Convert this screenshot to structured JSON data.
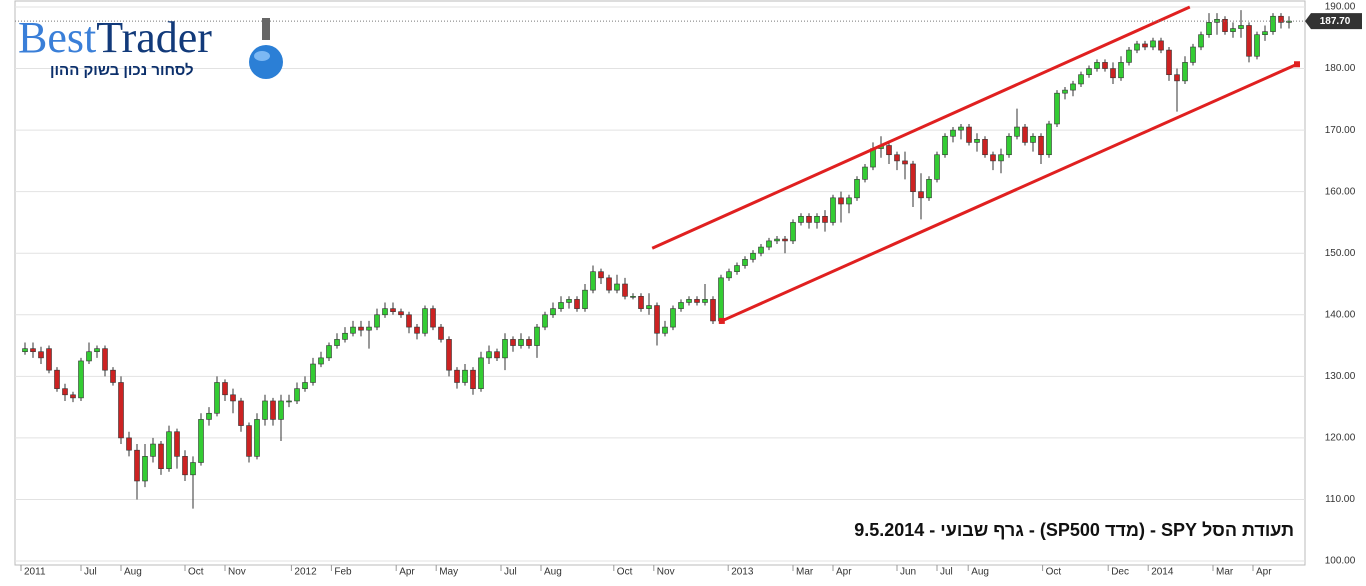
{
  "logo": {
    "first": "Best",
    "second": "Trader",
    "tagline": "לסחור נכון בשוק ההון"
  },
  "chart_data": {
    "type": "candlestick",
    "caption": "תעודת הסל SPY - (מדד SP500) - גרף שבועי - 9.5.2014",
    "up_color": "#33cc33",
    "down_color": "#cc2222",
    "trend_color": "#e02020",
    "grid": true,
    "ylim": [
      100,
      190
    ],
    "yticks": [
      {
        "value": 100,
        "label": "100.00"
      },
      {
        "value": 110,
        "label": "110.00"
      },
      {
        "value": 120,
        "label": "120.00"
      },
      {
        "value": 130,
        "label": "130.00"
      },
      {
        "value": 140,
        "label": "140.00"
      },
      {
        "value": 150,
        "label": "150.00"
      },
      {
        "value": 160,
        "label": "160.00"
      },
      {
        "value": 170,
        "label": "170.00"
      },
      {
        "value": 180,
        "label": "180.00"
      },
      {
        "value": 190,
        "label": "190.00"
      }
    ],
    "xlim": [
      -1.25,
      160
    ],
    "xticks": [
      {
        "value": -0.5,
        "label": "2011"
      },
      {
        "value": 7,
        "label": "Jul"
      },
      {
        "value": 12,
        "label": "Aug"
      },
      {
        "value": 20,
        "label": "Oct"
      },
      {
        "value": 25,
        "label": "Nov"
      },
      {
        "value": 33.3,
        "label": "2012"
      },
      {
        "value": 38.3,
        "label": "Feb"
      },
      {
        "value": 46.4,
        "label": "Apr"
      },
      {
        "value": 51.4,
        "label": "May"
      },
      {
        "value": 59.5,
        "label": "Jul"
      },
      {
        "value": 64.5,
        "label": "Aug"
      },
      {
        "value": 73.6,
        "label": "Oct"
      },
      {
        "value": 78.6,
        "label": "Nov"
      },
      {
        "value": 87.9,
        "label": "2013"
      },
      {
        "value": 96,
        "label": "Mar"
      },
      {
        "value": 101,
        "label": "Apr"
      },
      {
        "value": 109,
        "label": "Jun"
      },
      {
        "value": 114,
        "label": "Jul"
      },
      {
        "value": 117.9,
        "label": "Aug"
      },
      {
        "value": 127.2,
        "label": "Oct"
      },
      {
        "value": 135.4,
        "label": "Dec"
      },
      {
        "value": 140.4,
        "label": "2014"
      },
      {
        "value": 148.5,
        "label": "Mar"
      },
      {
        "value": 153.5,
        "label": "Apr"
      }
    ],
    "last_price": {
      "value": 187.7,
      "label": "187.70"
    },
    "trend_lines": [
      {
        "x": [
          78.4,
          145.6
        ],
        "y": [
          150.8,
          190
        ]
      },
      {
        "x": [
          87.1,
          159
        ],
        "y": [
          139,
          180.7
        ]
      }
    ],
    "ohlc": [
      [
        134,
        135.5,
        133.5,
        134.5
      ],
      [
        134.5,
        135.5,
        133,
        134
      ],
      [
        134,
        134.8,
        132,
        133
      ],
      [
        134.5,
        135,
        130.5,
        131
      ],
      [
        131,
        131.5,
        127.5,
        128
      ],
      [
        128,
        128.8,
        126,
        127
      ],
      [
        127,
        127.5,
        125.8,
        126.5
      ],
      [
        126.5,
        133,
        126,
        132.5
      ],
      [
        132.5,
        135.5,
        132,
        134
      ],
      [
        134,
        135,
        133,
        134.5
      ],
      [
        134.5,
        135,
        130,
        131
      ],
      [
        131,
        131.5,
        128.5,
        129
      ],
      [
        129,
        130,
        119,
        120
      ],
      [
        120,
        121,
        117,
        118
      ],
      [
        118,
        119,
        110,
        113
      ],
      [
        113,
        119,
        112,
        117
      ],
      [
        117,
        120,
        116,
        119
      ],
      [
        119,
        119.5,
        114,
        115
      ],
      [
        115,
        122,
        114.5,
        121
      ],
      [
        121,
        121.5,
        115,
        117
      ],
      [
        117,
        118,
        113,
        114
      ],
      [
        114,
        117,
        108.5,
        116
      ],
      [
        116,
        124,
        115.5,
        123
      ],
      [
        123,
        125,
        122,
        124
      ],
      [
        124,
        130,
        123.5,
        129
      ],
      [
        129,
        129.5,
        126,
        127
      ],
      [
        127,
        128,
        124,
        126
      ],
      [
        126,
        126.5,
        121,
        122
      ],
      [
        122,
        122.5,
        116,
        117
      ],
      [
        117,
        124,
        116.5,
        123
      ],
      [
        123,
        127,
        122,
        126
      ],
      [
        126,
        126.5,
        122,
        123
      ],
      [
        123,
        127,
        119.5,
        126
      ],
      [
        126,
        127,
        125,
        126
      ],
      [
        126,
        129,
        125.5,
        128
      ],
      [
        128,
        130,
        127.5,
        129
      ],
      [
        129,
        133,
        128.5,
        132
      ],
      [
        132,
        134,
        131.5,
        133
      ],
      [
        133,
        135.5,
        132.5,
        135
      ],
      [
        135,
        137,
        134.5,
        136
      ],
      [
        136,
        138,
        135.5,
        137
      ],
      [
        137,
        139,
        136.5,
        138
      ],
      [
        138,
        139,
        136.5,
        137.5
      ],
      [
        137.5,
        139,
        134.5,
        138
      ],
      [
        138,
        141,
        137.5,
        140
      ],
      [
        140,
        142,
        139.5,
        141
      ],
      [
        141,
        142,
        140,
        140.5
      ],
      [
        140.5,
        141,
        139.5,
        140
      ],
      [
        140,
        140.5,
        137,
        138
      ],
      [
        138,
        138.5,
        136,
        137
      ],
      [
        137,
        141.5,
        136.5,
        141
      ],
      [
        141,
        141.5,
        137.5,
        138
      ],
      [
        138,
        138.5,
        135.5,
        136
      ],
      [
        136,
        136.5,
        130,
        131
      ],
      [
        131,
        131.5,
        128,
        129
      ],
      [
        129,
        132,
        128.5,
        131
      ],
      [
        131,
        131.5,
        127,
        128
      ],
      [
        128,
        134,
        127.5,
        133
      ],
      [
        133,
        135,
        132,
        134
      ],
      [
        134,
        134.5,
        132.5,
        133
      ],
      [
        133,
        137,
        131,
        136
      ],
      [
        136,
        136.5,
        134,
        135
      ],
      [
        135,
        137,
        134.5,
        136
      ],
      [
        136,
        136.5,
        134.5,
        135
      ],
      [
        135,
        138.5,
        133,
        138
      ],
      [
        138,
        140.5,
        137.5,
        140
      ],
      [
        140,
        142,
        139.5,
        141
      ],
      [
        141,
        143,
        140.5,
        142
      ],
      [
        142,
        143,
        141,
        142.5
      ],
      [
        142.5,
        143,
        140.5,
        141
      ],
      [
        141,
        145,
        140.5,
        144
      ],
      [
        144,
        148,
        143.5,
        147
      ],
      [
        147,
        147.5,
        145,
        146
      ],
      [
        146,
        146.5,
        143.5,
        144
      ],
      [
        144,
        146.5,
        143.5,
        145
      ],
      [
        145,
        146,
        142.5,
        143
      ],
      [
        143,
        143.5,
        142.5,
        143
      ],
      [
        143,
        143.5,
        140.5,
        141
      ],
      [
        141,
        143.5,
        140,
        141.5
      ],
      [
        141.5,
        142,
        135,
        137
      ],
      [
        137,
        139,
        136.5,
        138
      ],
      [
        138,
        141.5,
        137.5,
        141
      ],
      [
        141,
        142.5,
        140.5,
        142
      ],
      [
        142,
        143,
        141.5,
        142.5
      ],
      [
        142.5,
        143,
        141.5,
        142
      ],
      [
        142,
        145,
        141.5,
        142.5
      ],
      [
        142.5,
        143,
        138.5,
        139
      ],
      [
        139,
        146.5,
        138.5,
        146
      ],
      [
        146,
        147.5,
        145.5,
        147
      ],
      [
        147,
        148.5,
        146.5,
        148
      ],
      [
        148,
        149.5,
        147.5,
        149
      ],
      [
        149,
        150.5,
        148.5,
        150
      ],
      [
        150,
        151.5,
        149.5,
        151
      ],
      [
        151,
        152.5,
        150.5,
        152
      ],
      [
        152,
        152.8,
        151.5,
        152.3
      ],
      [
        152.3,
        152.8,
        150,
        152
      ],
      [
        152,
        155.5,
        151.5,
        155
      ],
      [
        155,
        156.5,
        154.5,
        156
      ],
      [
        156,
        156.5,
        154,
        155
      ],
      [
        155,
        156.5,
        154,
        156
      ],
      [
        156,
        157,
        153.5,
        155
      ],
      [
        155,
        159.5,
        154.5,
        159
      ],
      [
        159,
        160,
        155,
        158
      ],
      [
        158,
        159.5,
        156.5,
        159
      ],
      [
        159,
        162.5,
        158.5,
        162
      ],
      [
        162,
        164.5,
        161.5,
        164
      ],
      [
        164,
        168,
        163.5,
        167
      ],
      [
        167,
        169,
        165.5,
        167.5
      ],
      [
        167.5,
        168,
        164.5,
        166
      ],
      [
        166,
        166.5,
        163.5,
        165
      ],
      [
        165,
        166.5,
        162,
        164.5
      ],
      [
        164.5,
        165,
        157.5,
        160
      ],
      [
        160,
        163,
        155.5,
        159
      ],
      [
        159,
        162.5,
        158.5,
        162
      ],
      [
        162,
        166.5,
        161.5,
        166
      ],
      [
        166,
        169.5,
        165.5,
        169
      ],
      [
        169,
        170.5,
        168,
        170
      ],
      [
        170,
        171,
        168.5,
        170.5
      ],
      [
        170.5,
        171,
        167.5,
        168
      ],
      [
        168,
        169.5,
        166.5,
        168.5
      ],
      [
        168.5,
        169,
        165.5,
        166
      ],
      [
        166,
        166.5,
        163.5,
        165
      ],
      [
        165,
        167,
        163,
        166
      ],
      [
        166,
        169.5,
        165.5,
        169
      ],
      [
        169,
        173.5,
        168.5,
        170.5
      ],
      [
        170.5,
        171,
        167.5,
        168
      ],
      [
        168,
        169.5,
        166.5,
        169
      ],
      [
        169,
        169.5,
        164.5,
        166
      ],
      [
        166,
        171.5,
        165.5,
        171
      ],
      [
        171,
        176.5,
        170.5,
        176
      ],
      [
        176,
        177,
        175,
        176.5
      ],
      [
        176.5,
        178,
        175.5,
        177.5
      ],
      [
        177.5,
        179.5,
        177,
        179
      ],
      [
        179,
        180.5,
        178.5,
        180
      ],
      [
        180,
        181.5,
        179.5,
        181
      ],
      [
        181,
        181.5,
        179.5,
        180
      ],
      [
        180,
        181,
        177.5,
        178.5
      ],
      [
        178.5,
        182,
        178,
        181
      ],
      [
        181,
        183.5,
        180.5,
        183
      ],
      [
        183,
        184.5,
        182.5,
        184
      ],
      [
        184,
        184.5,
        183,
        183.5
      ],
      [
        183.5,
        185,
        183,
        184.5
      ],
      [
        184.5,
        185,
        182.5,
        183
      ],
      [
        183,
        183.5,
        178,
        179
      ],
      [
        179,
        180,
        173,
        178
      ],
      [
        178,
        182,
        177.5,
        181
      ],
      [
        181,
        184,
        180.5,
        183.5
      ],
      [
        183.5,
        186,
        183,
        185.5
      ],
      [
        185.5,
        189,
        185,
        187.5
      ],
      [
        187.5,
        189,
        185.5,
        188
      ],
      [
        188,
        188.5,
        185.5,
        186
      ],
      [
        186,
        187.5,
        185,
        186.5
      ],
      [
        186.5,
        189.5,
        185,
        187
      ],
      [
        187,
        187.5,
        181,
        182
      ],
      [
        182,
        186,
        181.5,
        185.5
      ],
      [
        185.5,
        187,
        184.5,
        186
      ],
      [
        186,
        189,
        185.5,
        188.5
      ],
      [
        188.5,
        189,
        186.5,
        187.5
      ],
      [
        187.5,
        188.5,
        186.5,
        187.7
      ]
    ]
  }
}
